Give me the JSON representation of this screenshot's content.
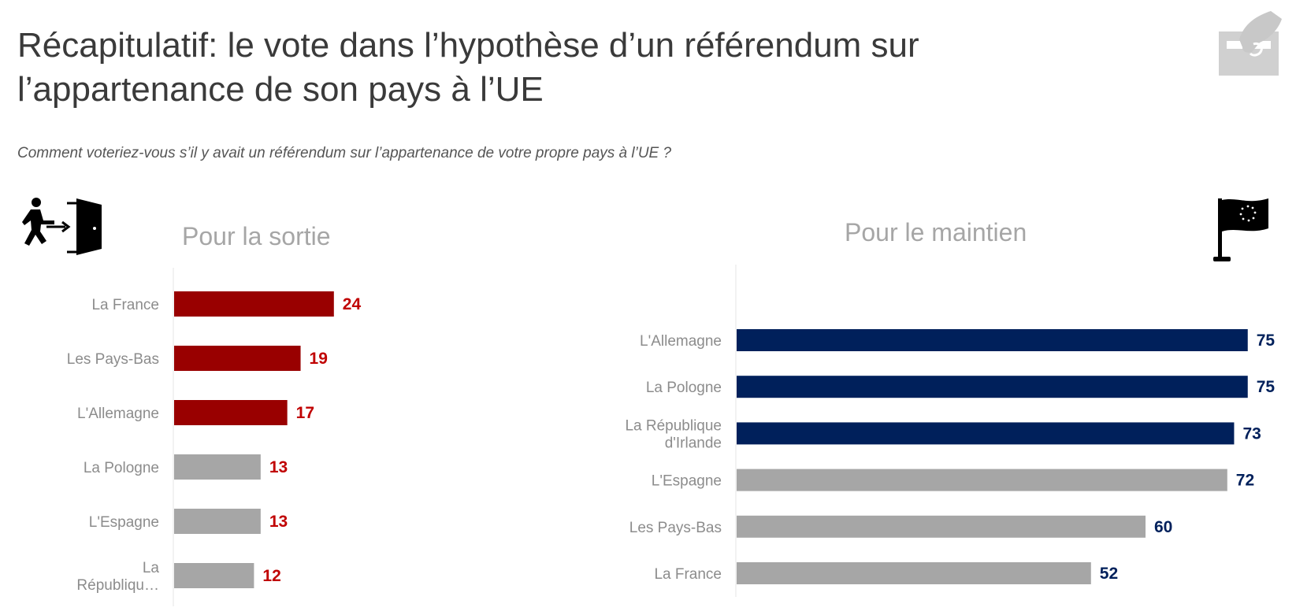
{
  "header": {
    "title_line1": "Récapitulatif: le vote dans l’hypothèse d’un référendum sur",
    "title_line2": "l’appartenance de son pays à l’UE",
    "question": "Comment voteriez-vous s’il y avait un référendum sur l’appartenance de votre propre pays à l’UE ?"
  },
  "icons": {
    "logo": "hand-ballot-icon",
    "exit": "person-exit-door-icon",
    "flag": "eu-flag-icon"
  },
  "colors": {
    "exit_highlight": "#990000",
    "remain_highlight": "#00205b",
    "neutral": "#a6a6a6",
    "exit_value_text": "#c00000",
    "remain_value_text": "#00205b"
  },
  "chart_data": [
    {
      "type": "bar",
      "orientation": "horizontal",
      "title": "Pour la sortie",
      "categories": [
        "La France",
        "Les Pays-Bas",
        "L'Allemagne",
        "La Pologne",
        "L'Espagne",
        "La Républiqu…"
      ],
      "values": [
        24,
        19,
        17,
        13,
        13,
        12
      ],
      "highlighted": [
        true,
        true,
        true,
        false,
        false,
        false
      ],
      "xlim": [
        0,
        75
      ]
    },
    {
      "type": "bar",
      "orientation": "horizontal",
      "title": "Pour le maintien",
      "categories": [
        "L'Allemagne",
        "La Pologne",
        "La République d'Irlande",
        "L'Espagne",
        "Les Pays-Bas",
        "La France"
      ],
      "values": [
        75,
        75,
        73,
        72,
        60,
        52
      ],
      "highlighted": [
        true,
        true,
        true,
        false,
        false,
        false
      ],
      "xlim": [
        0,
        75
      ]
    }
  ]
}
